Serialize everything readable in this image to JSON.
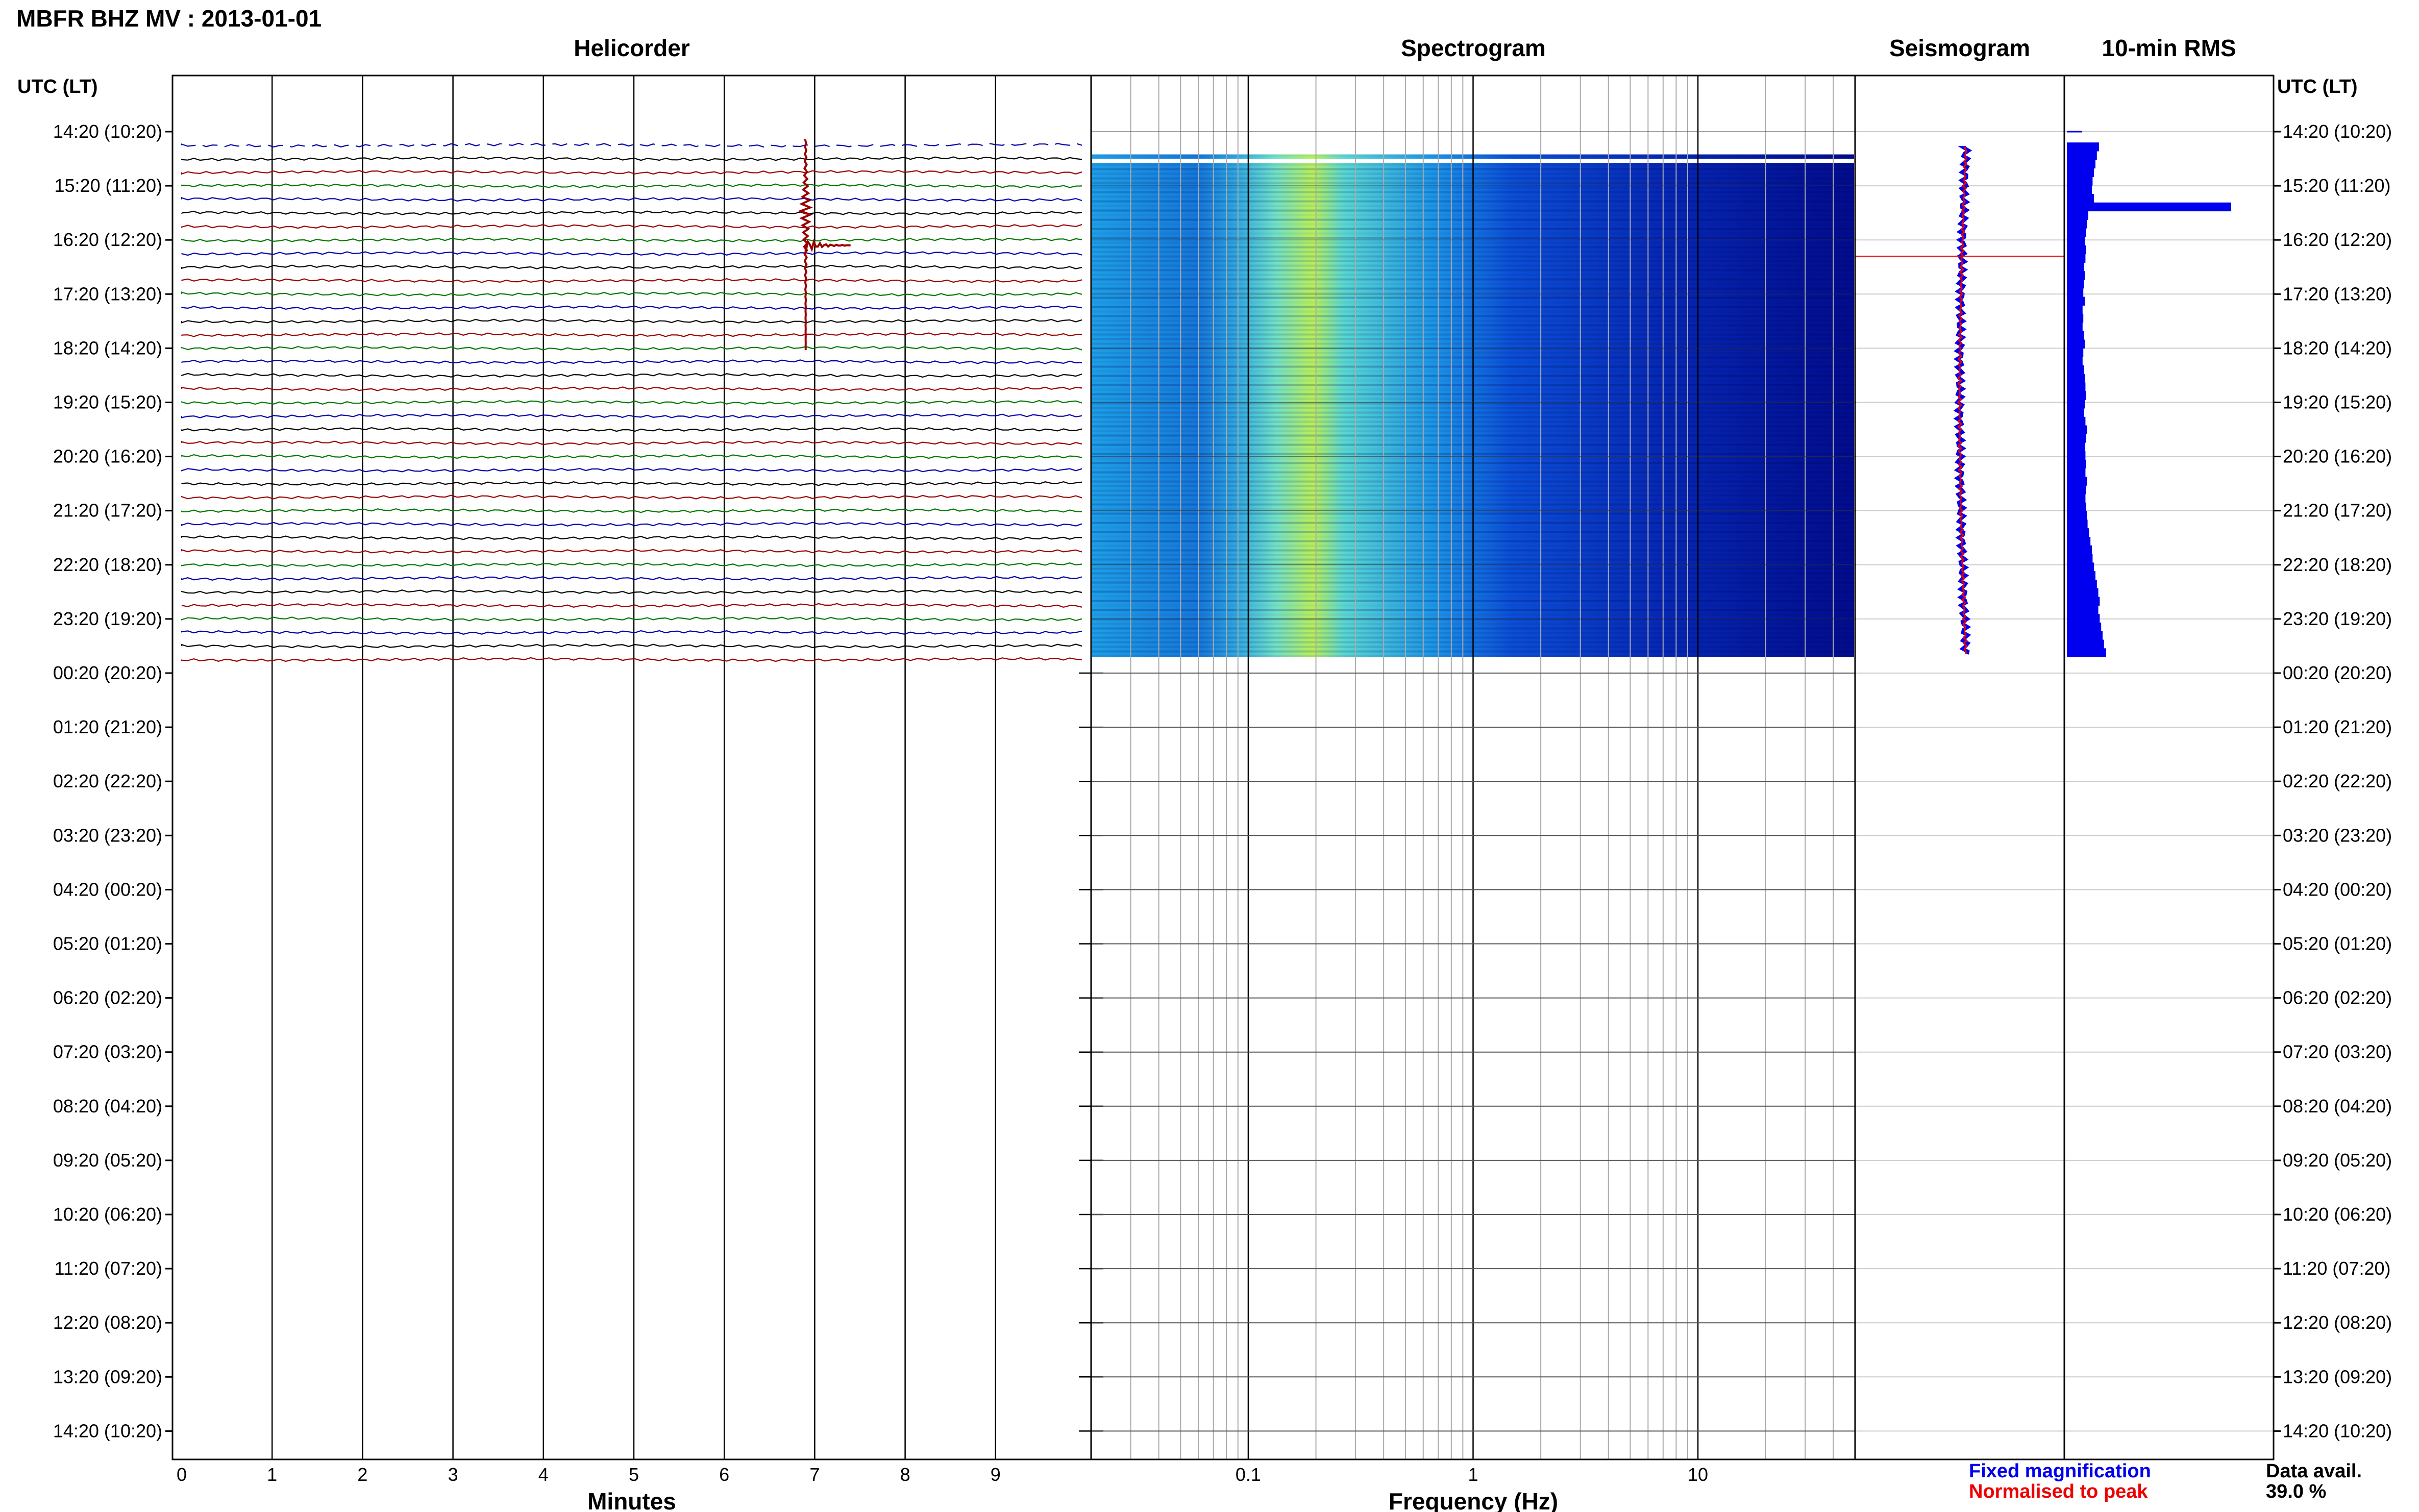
{
  "header": {
    "title": "MBFR BHZ MV : 2013-01-01"
  },
  "panels": {
    "helicorder": "Helicorder",
    "spectrogram": "Spectrogram",
    "seismogram": "Seismogram",
    "rms": "10-min RMS"
  },
  "axes": {
    "left_header": "UTC (LT)",
    "right_header": "UTC (LT)",
    "time_labels": [
      "14:20 (10:20)",
      "15:20 (11:20)",
      "16:20 (12:20)",
      "17:20 (13:20)",
      "18:20 (14:20)",
      "19:20 (15:20)",
      "20:20 (16:20)",
      "21:20 (17:20)",
      "22:20 (18:20)",
      "23:20 (19:20)",
      "00:20 (20:20)",
      "01:20 (21:20)",
      "02:20 (22:20)",
      "03:20 (23:20)",
      "04:20 (00:20)",
      "05:20 (01:20)",
      "06:20 (02:20)",
      "07:20 (03:20)",
      "08:20 (04:20)",
      "09:20 (05:20)",
      "10:20 (06:20)",
      "11:20 (07:20)",
      "12:20 (08:20)",
      "13:20 (09:20)",
      "14:20 (10:20)"
    ],
    "minutes_label": "Minutes",
    "minute_ticks": [
      "0",
      "1",
      "2",
      "3",
      "4",
      "5",
      "6",
      "7",
      "8",
      "9"
    ],
    "frequency_label": "Frequency (Hz)",
    "frequency_ticks": [
      "0.1",
      "1",
      "10"
    ]
  },
  "legend": {
    "fixed": "Fixed magnification",
    "normalised": "Normalised to peak",
    "fixed_color": "#0000ee",
    "normalised_color": "#ee0000"
  },
  "data_availability": {
    "label": "Data avail.",
    "value": "39.0 %"
  },
  "chart_data": [
    {
      "type": "line",
      "title": "Helicorder",
      "xlabel": "Minutes",
      "xlim": [
        0,
        10
      ],
      "trace_colors": [
        "#0000aa",
        "#000000",
        "#990000",
        "#007700"
      ],
      "traces_per_hour": 4,
      "data_hours": 9.7,
      "events": [
        {
          "minute": 6.9,
          "time_utc": "15:20–17:20",
          "note": "large transient"
        }
      ]
    },
    {
      "type": "heatmap",
      "title": "Spectrogram",
      "xlabel": "Frequency (Hz)",
      "x_scale": "log",
      "xlim": [
        0.02,
        50
      ],
      "colormap": [
        "#00008b",
        "#0000ff",
        "#00bfff",
        "#7fffd4",
        "#adff2f",
        "#ffff00"
      ],
      "peak_band_hz": [
        0.15,
        0.3
      ]
    },
    {
      "type": "line",
      "title": "Seismogram",
      "series": [
        {
          "name": "Fixed magnification",
          "color": "#0000ee"
        },
        {
          "name": "Normalised to peak",
          "color": "#ee0000"
        }
      ]
    },
    {
      "type": "bar",
      "title": "10-min RMS",
      "color": "#0000ee",
      "relative_values": [
        0.45,
        0.42,
        0.4,
        0.38,
        0.36,
        0.35,
        0.38,
        2.3,
        0.3,
        0.28,
        0.27,
        0.25,
        0.27,
        0.26,
        0.24,
        0.25,
        0.24,
        0.23,
        0.25,
        0.22,
        0.23,
        0.22,
        0.24,
        0.25,
        0.23,
        0.22,
        0.24,
        0.25,
        0.26,
        0.27,
        0.25,
        0.24,
        0.26,
        0.28,
        0.27,
        0.25,
        0.26,
        0.27,
        0.26,
        0.28,
        0.27,
        0.26,
        0.27,
        0.28,
        0.29,
        0.31,
        0.33,
        0.35,
        0.36,
        0.38,
        0.4,
        0.42,
        0.44,
        0.46,
        0.44,
        0.46,
        0.48,
        0.5,
        0.52,
        0.55
      ]
    }
  ]
}
